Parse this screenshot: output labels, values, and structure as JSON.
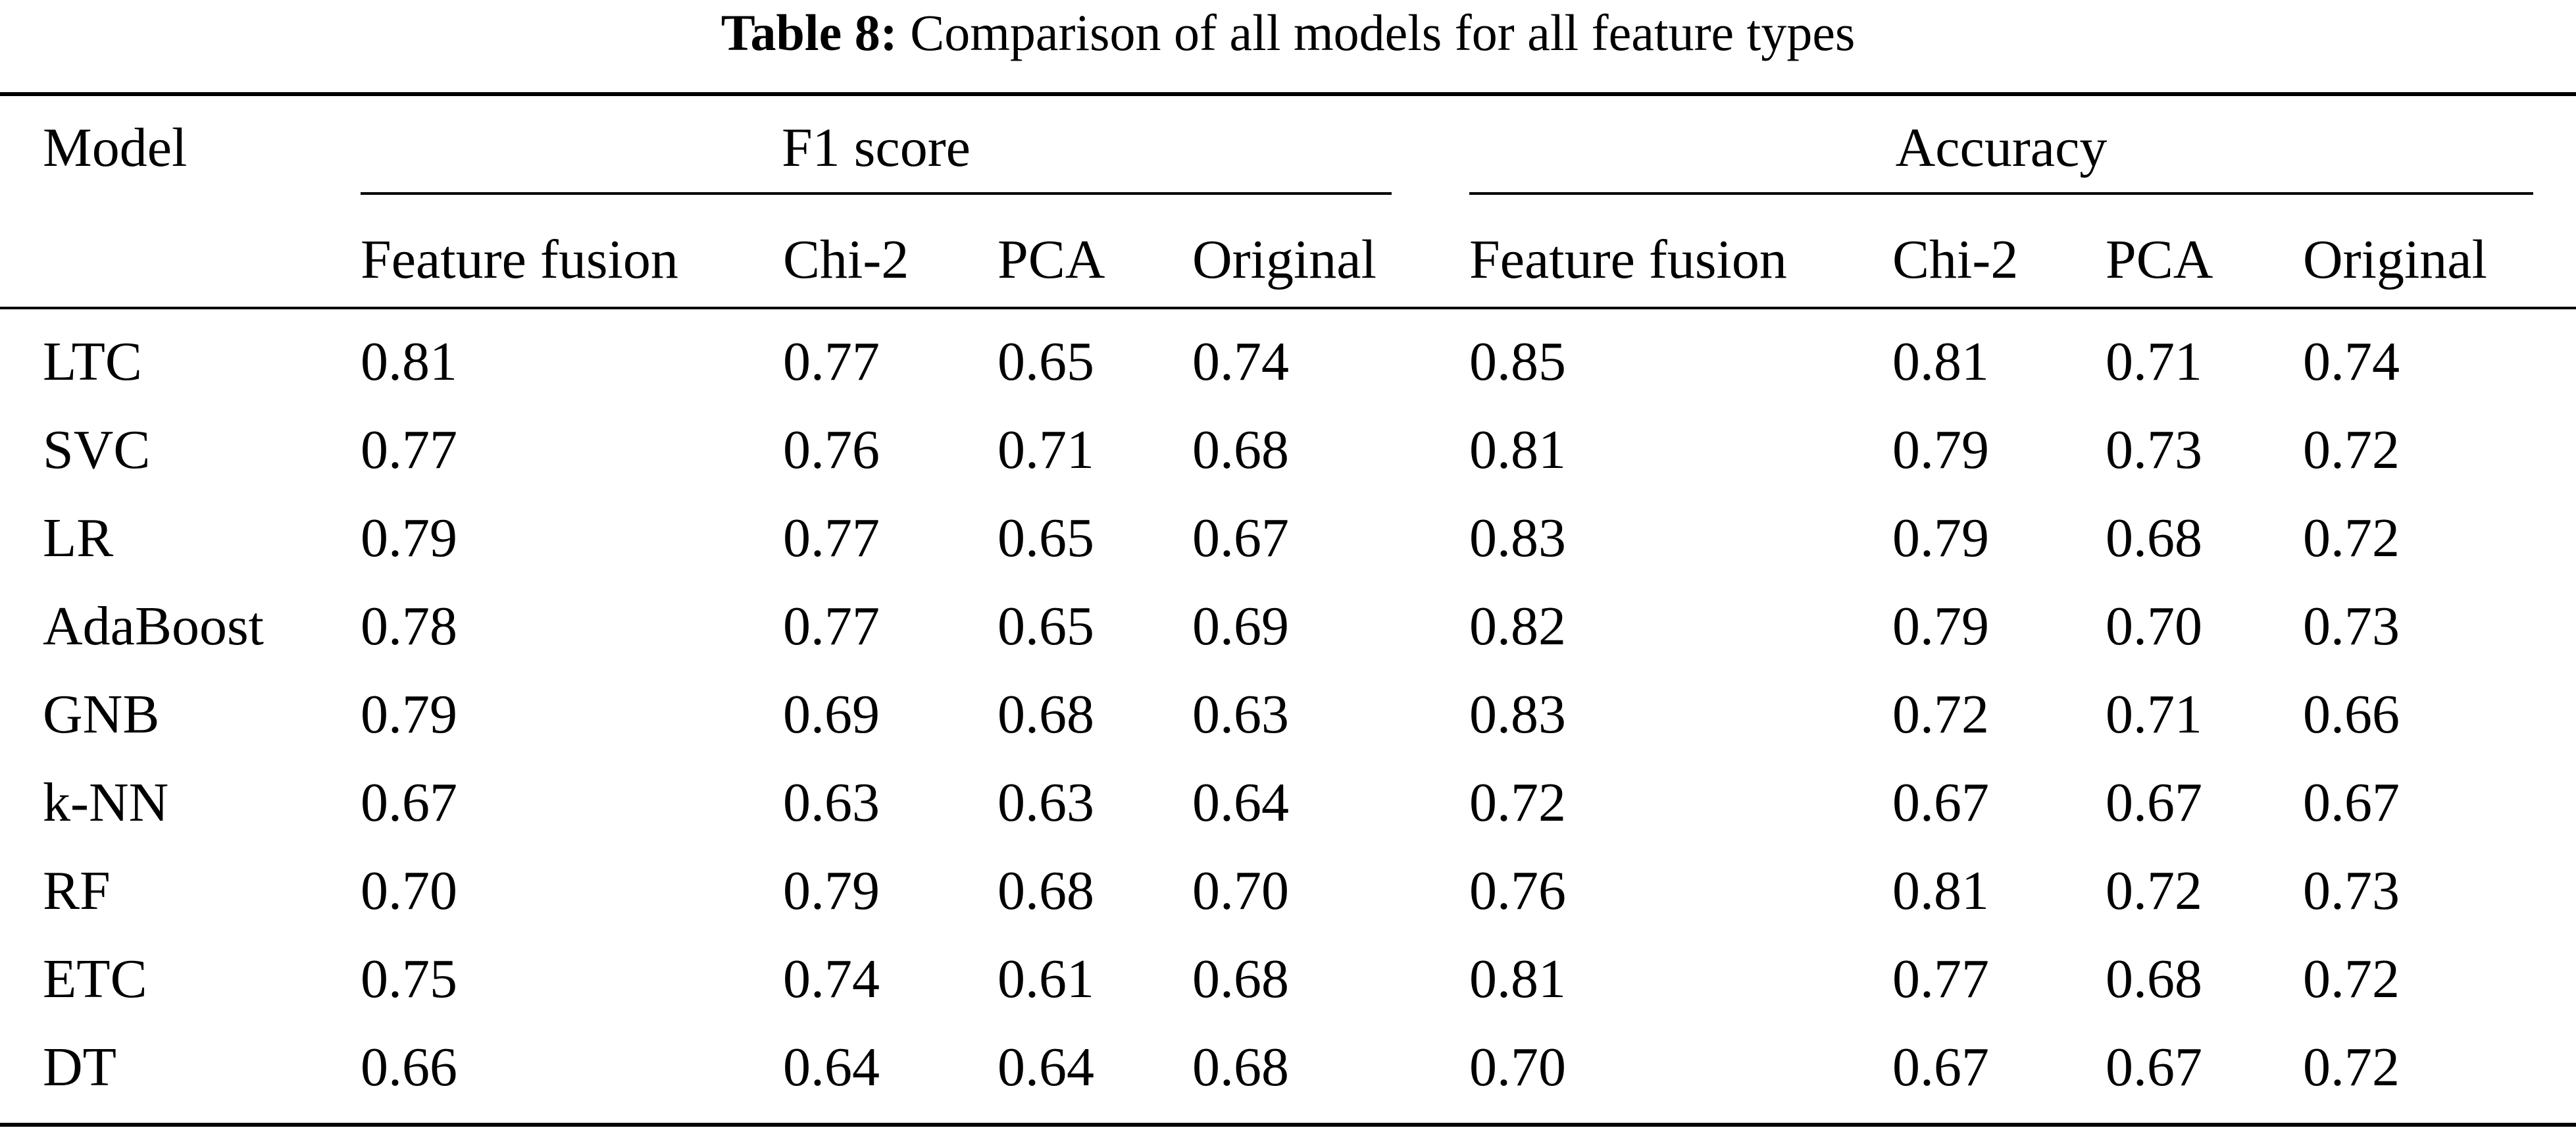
{
  "caption": {
    "label": "Table 8:",
    "text": "Comparison of all models for all feature types"
  },
  "table": {
    "row_header_label": "Model",
    "groups": [
      {
        "label": "F1 score",
        "columns": [
          "Feature fusion",
          "Chi-2",
          "PCA",
          "Original"
        ]
      },
      {
        "label": "Accuracy",
        "columns": [
          "Feature fusion",
          "Chi-2",
          "PCA",
          "Original"
        ]
      }
    ],
    "rows": [
      {
        "model": "LTC",
        "values": [
          "0.81",
          "0.77",
          "0.65",
          "0.74",
          "0.85",
          "0.81",
          "0.71",
          "0.74"
        ]
      },
      {
        "model": "SVC",
        "values": [
          "0.77",
          "0.76",
          "0.71",
          "0.68",
          "0.81",
          "0.79",
          "0.73",
          "0.72"
        ]
      },
      {
        "model": "LR",
        "values": [
          "0.79",
          "0.77",
          "0.65",
          "0.67",
          "0.83",
          "0.79",
          "0.68",
          "0.72"
        ]
      },
      {
        "model": "AdaBoost",
        "values": [
          "0.78",
          "0.77",
          "0.65",
          "0.69",
          "0.82",
          "0.79",
          "0.70",
          "0.73"
        ]
      },
      {
        "model": "GNB",
        "values": [
          "0.79",
          "0.69",
          "0.68",
          "0.63",
          "0.83",
          "0.72",
          "0.71",
          "0.66"
        ]
      },
      {
        "model": "k-NN",
        "values": [
          "0.67",
          "0.63",
          "0.63",
          "0.64",
          "0.72",
          "0.67",
          "0.67",
          "0.67"
        ]
      },
      {
        "model": "RF",
        "values": [
          "0.70",
          "0.79",
          "0.68",
          "0.70",
          "0.76",
          "0.81",
          "0.72",
          "0.73"
        ]
      },
      {
        "model": "ETC",
        "values": [
          "0.75",
          "0.74",
          "0.61",
          "0.68",
          "0.81",
          "0.77",
          "0.68",
          "0.72"
        ]
      },
      {
        "model": "DT",
        "values": [
          "0.66",
          "0.64",
          "0.64",
          "0.68",
          "0.70",
          "0.67",
          "0.67",
          "0.72"
        ]
      }
    ]
  }
}
